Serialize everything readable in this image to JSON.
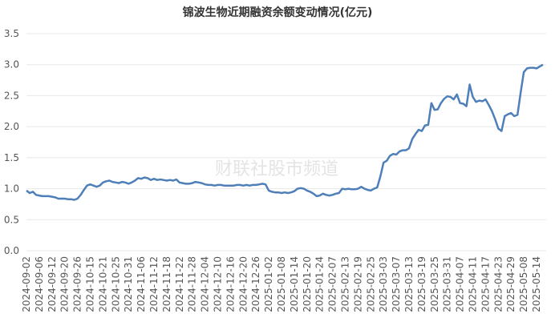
{
  "chart_data": {
    "type": "line",
    "title": "锦波生物近期融资余额变动情况(亿元)",
    "watermark": "财联社股市频道",
    "categories": [
      "2024-09-02",
      null,
      null,
      null,
      "2024-09-06",
      null,
      null,
      null,
      "2024-09-12",
      null,
      null,
      null,
      "2024-09-20",
      null,
      null,
      null,
      "2024-09-26",
      null,
      null,
      null,
      "2024-10-15",
      null,
      null,
      null,
      "2024-10-21",
      null,
      null,
      null,
      "2024-10-25",
      null,
      null,
      null,
      "2024-10-31",
      null,
      null,
      null,
      "2024-11-06",
      null,
      null,
      null,
      "2024-11-12",
      null,
      null,
      null,
      "2024-11-18",
      null,
      null,
      null,
      "2024-11-22",
      null,
      null,
      null,
      "2024-11-28",
      null,
      null,
      null,
      "2024-12-04",
      null,
      null,
      null,
      "2024-12-10",
      null,
      null,
      null,
      "2024-12-16",
      null,
      null,
      null,
      "2024-12-20",
      null,
      null,
      null,
      "2024-12-26",
      null,
      null,
      null,
      "2025-01-02",
      null,
      null,
      null,
      "2025-01-08",
      null,
      null,
      null,
      "2025-01-14",
      null,
      null,
      null,
      "2025-01-20",
      null,
      null,
      null,
      "2025-01-24",
      null,
      null,
      null,
      "2025-02-07",
      null,
      null,
      null,
      "2025-02-13",
      null,
      null,
      null,
      "2025-02-19",
      null,
      null,
      null,
      "2025-02-25",
      null,
      null,
      null,
      "2025-03-03",
      null,
      null,
      null,
      "2025-03-07",
      null,
      null,
      null,
      "2025-03-13",
      null,
      null,
      null,
      "2025-03-19",
      null,
      null,
      null,
      "2025-03-25",
      null,
      null,
      null,
      "2025-03-31",
      null,
      null,
      null,
      "2025-04-07",
      null,
      null,
      null,
      "2025-04-11",
      null,
      null,
      null,
      "2025-04-17",
      null,
      null,
      null,
      "2025-04-23",
      null,
      null,
      null,
      "2025-04-29",
      null,
      null,
      null,
      "2025-05-08",
      null,
      null,
      null,
      "2025-05-14",
      null,
      null
    ],
    "series": [
      {
        "name": "融资余额",
        "color": "#4e7fb8",
        "values": [
          0.97,
          0.93,
          0.95,
          0.9,
          0.89,
          0.88,
          0.88,
          0.88,
          0.87,
          0.86,
          0.84,
          0.84,
          0.84,
          0.83,
          0.83,
          0.82,
          0.84,
          0.9,
          0.98,
          1.05,
          1.07,
          1.05,
          1.03,
          1.05,
          1.1,
          1.12,
          1.13,
          1.11,
          1.1,
          1.09,
          1.11,
          1.1,
          1.08,
          1.1,
          1.13,
          1.17,
          1.16,
          1.18,
          1.17,
          1.14,
          1.16,
          1.14,
          1.15,
          1.14,
          1.13,
          1.14,
          1.13,
          1.15,
          1.1,
          1.09,
          1.08,
          1.08,
          1.09,
          1.11,
          1.1,
          1.09,
          1.07,
          1.06,
          1.06,
          1.05,
          1.06,
          1.06,
          1.05,
          1.05,
          1.05,
          1.05,
          1.06,
          1.06,
          1.05,
          1.06,
          1.05,
          1.06,
          1.06,
          1.07,
          1.08,
          1.07,
          0.97,
          0.95,
          0.94,
          0.94,
          0.93,
          0.94,
          0.93,
          0.94,
          0.96,
          1.0,
          1.01,
          1.0,
          0.97,
          0.95,
          0.92,
          0.88,
          0.89,
          0.92,
          0.9,
          0.89,
          0.9,
          0.92,
          0.93,
          1.0,
          0.99,
          1.0,
          0.99,
          0.99,
          1.0,
          1.03,
          1.0,
          0.98,
          0.97,
          1.0,
          1.02,
          1.2,
          1.42,
          1.45,
          1.53,
          1.56,
          1.55,
          1.6,
          1.62,
          1.62,
          1.65,
          1.8,
          1.88,
          1.95,
          1.93,
          2.02,
          2.03,
          2.38,
          2.27,
          2.28,
          2.38,
          2.45,
          2.49,
          2.48,
          2.44,
          2.52,
          2.38,
          2.37,
          2.33,
          2.68,
          2.48,
          2.4,
          2.42,
          2.41,
          2.44,
          2.35,
          2.25,
          2.12,
          1.97,
          1.93,
          2.17,
          2.2,
          2.22,
          2.17,
          2.19,
          2.55,
          2.88,
          2.94,
          2.95,
          2.95,
          2.94,
          2.97,
          3.0
        ]
      }
    ],
    "ylim": [
      0,
      3.5
    ],
    "yticks": [
      {
        "value": 0,
        "label": "0.0"
      },
      0.5,
      {
        "value": 1,
        "label": "1.0"
      },
      1.5,
      {
        "value": 2,
        "label": "2.0"
      },
      2.5,
      {
        "value": 3,
        "label": "3.0"
      },
      3.5
    ],
    "grid": true
  }
}
